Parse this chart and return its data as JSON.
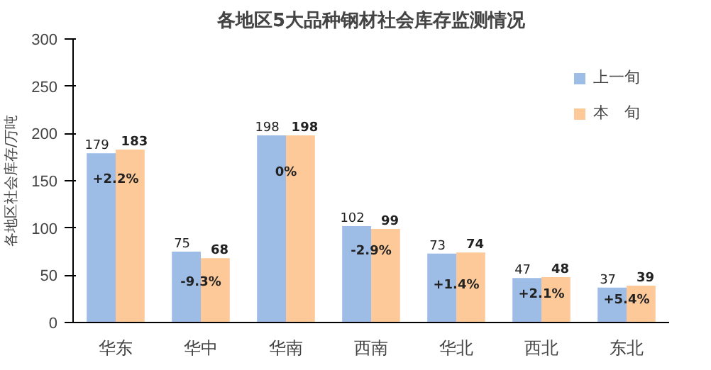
{
  "chart_data": {
    "type": "bar",
    "title": "各地区5大品种钢材社会库存监测情况",
    "ylabel": "各地区社会库存/万吨",
    "categories": [
      "华东",
      "华中",
      "华南",
      "西南",
      "华北",
      "西北",
      "东北"
    ],
    "series": [
      {
        "name": "上一旬",
        "color": "#9dbde6",
        "values": [
          179,
          75,
          198,
          102,
          73,
          47,
          37
        ]
      },
      {
        "name": "本　旬",
        "color": "#fdc999",
        "values": [
          183,
          68,
          198,
          99,
          74,
          48,
          39
        ]
      }
    ],
    "ylim": [
      0,
      300
    ],
    "yticks": [
      0,
      50,
      100,
      150,
      200,
      250,
      300
    ],
    "grid": false,
    "legend": "right",
    "data_labels": true,
    "annotations": [
      {
        "text": "+2.2%",
        "x": "华东",
        "y": 151
      },
      {
        "text": "-9.3%",
        "x": "华中",
        "y": 42
      },
      {
        "text": "0%",
        "x": "华南",
        "y": 158
      },
      {
        "text": "-2.9%",
        "x": "西南",
        "y": 75
      },
      {
        "text": "+1.4%",
        "x": "华北",
        "y": 39
      },
      {
        "text": "+2.1%",
        "x": "西北",
        "y": 29
      },
      {
        "text": "+5.4%",
        "x": "东北",
        "y": 23
      }
    ]
  }
}
